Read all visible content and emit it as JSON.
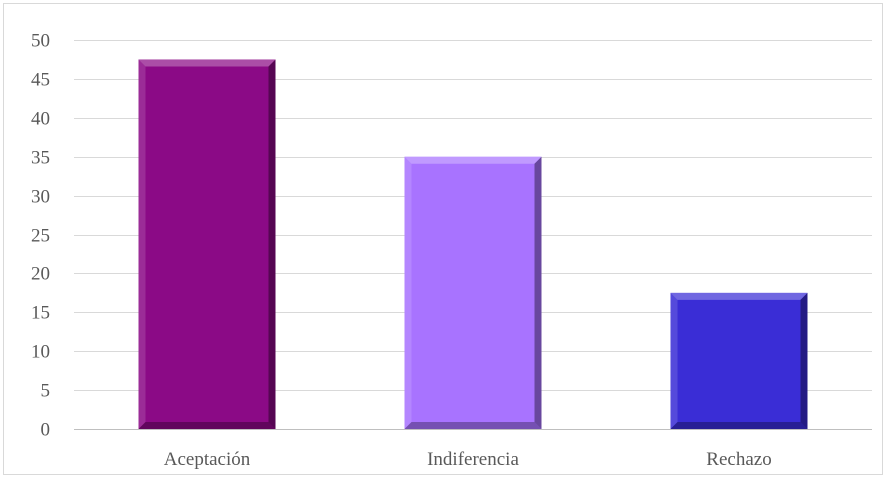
{
  "chart_data": {
    "type": "bar",
    "title": "",
    "xlabel": "",
    "ylabel": "",
    "categories": [
      "Aceptación",
      "Indiferencia",
      "Rechazo"
    ],
    "values": [
      47.5,
      35,
      17.5
    ],
    "colors": [
      "#8b0a86",
      "#a873ff",
      "#3a2dd6"
    ],
    "ylim": [
      0,
      50
    ],
    "yticks": [
      0,
      5,
      10,
      15,
      20,
      25,
      30,
      35,
      40,
      45,
      50
    ],
    "grid": true,
    "legend": "none"
  }
}
